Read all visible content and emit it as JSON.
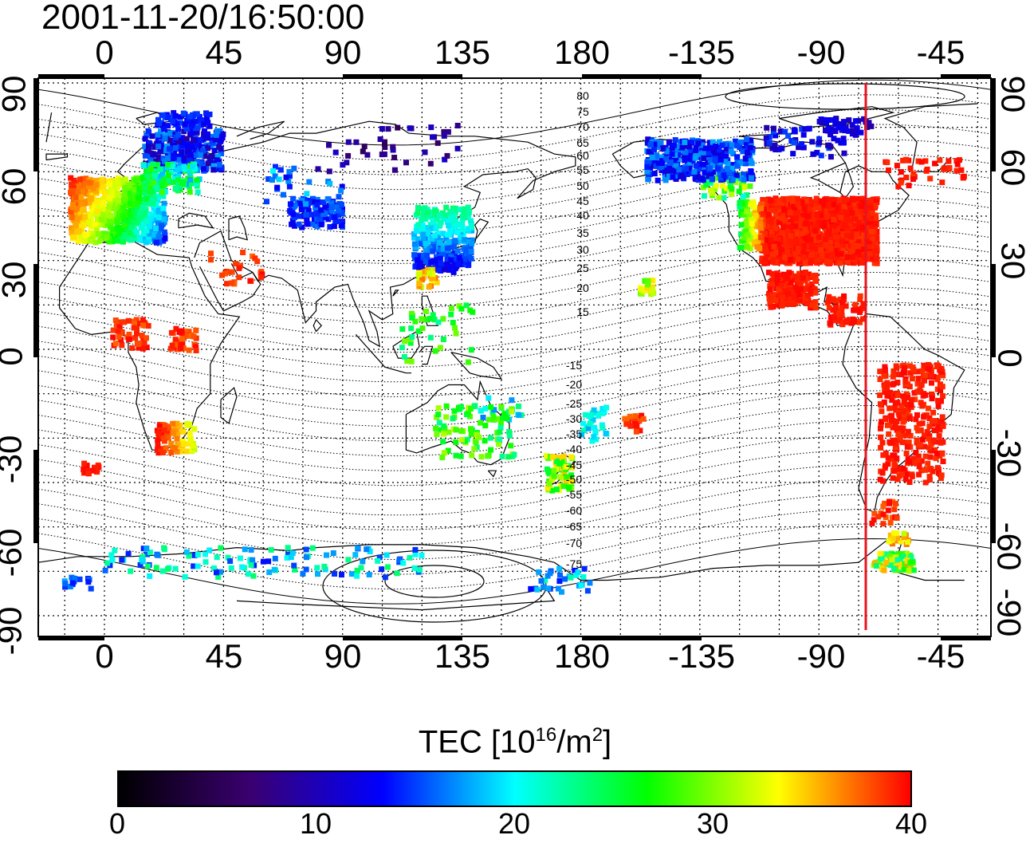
{
  "title": "2001-11-20/16:50:00",
  "map": {
    "lon_ticks": [
      "0",
      "45",
      "90",
      "135",
      "180",
      "-135",
      "-90",
      "-45"
    ],
    "lat_ticks": [
      "90",
      "60",
      "30",
      "0",
      "-30",
      "-60",
      "-90"
    ],
    "contour_labels": [
      "80",
      "75",
      "70",
      "65",
      "60",
      "55",
      "50",
      "45",
      "40",
      "35",
      "30",
      "25",
      "20",
      "15",
      "-15",
      "-20",
      "-25",
      "-30",
      "-35",
      "-40",
      "-45",
      "-50",
      "-55",
      "-60",
      "-65",
      "-70",
      "-75"
    ],
    "terminator_color": "#e8141c"
  },
  "colorbar": {
    "label_main": "TEC  [10",
    "label_exp": "16",
    "label_unit": "/m",
    "label_exp2": "2",
    "label_end": "]",
    "ticks": [
      "0",
      "10",
      "20",
      "30",
      "40"
    ],
    "colors": [
      "#000000",
      "#3a0070",
      "#0000ff",
      "#00ffff",
      "#00ff00",
      "#ffff00",
      "#ff0000"
    ]
  }
}
